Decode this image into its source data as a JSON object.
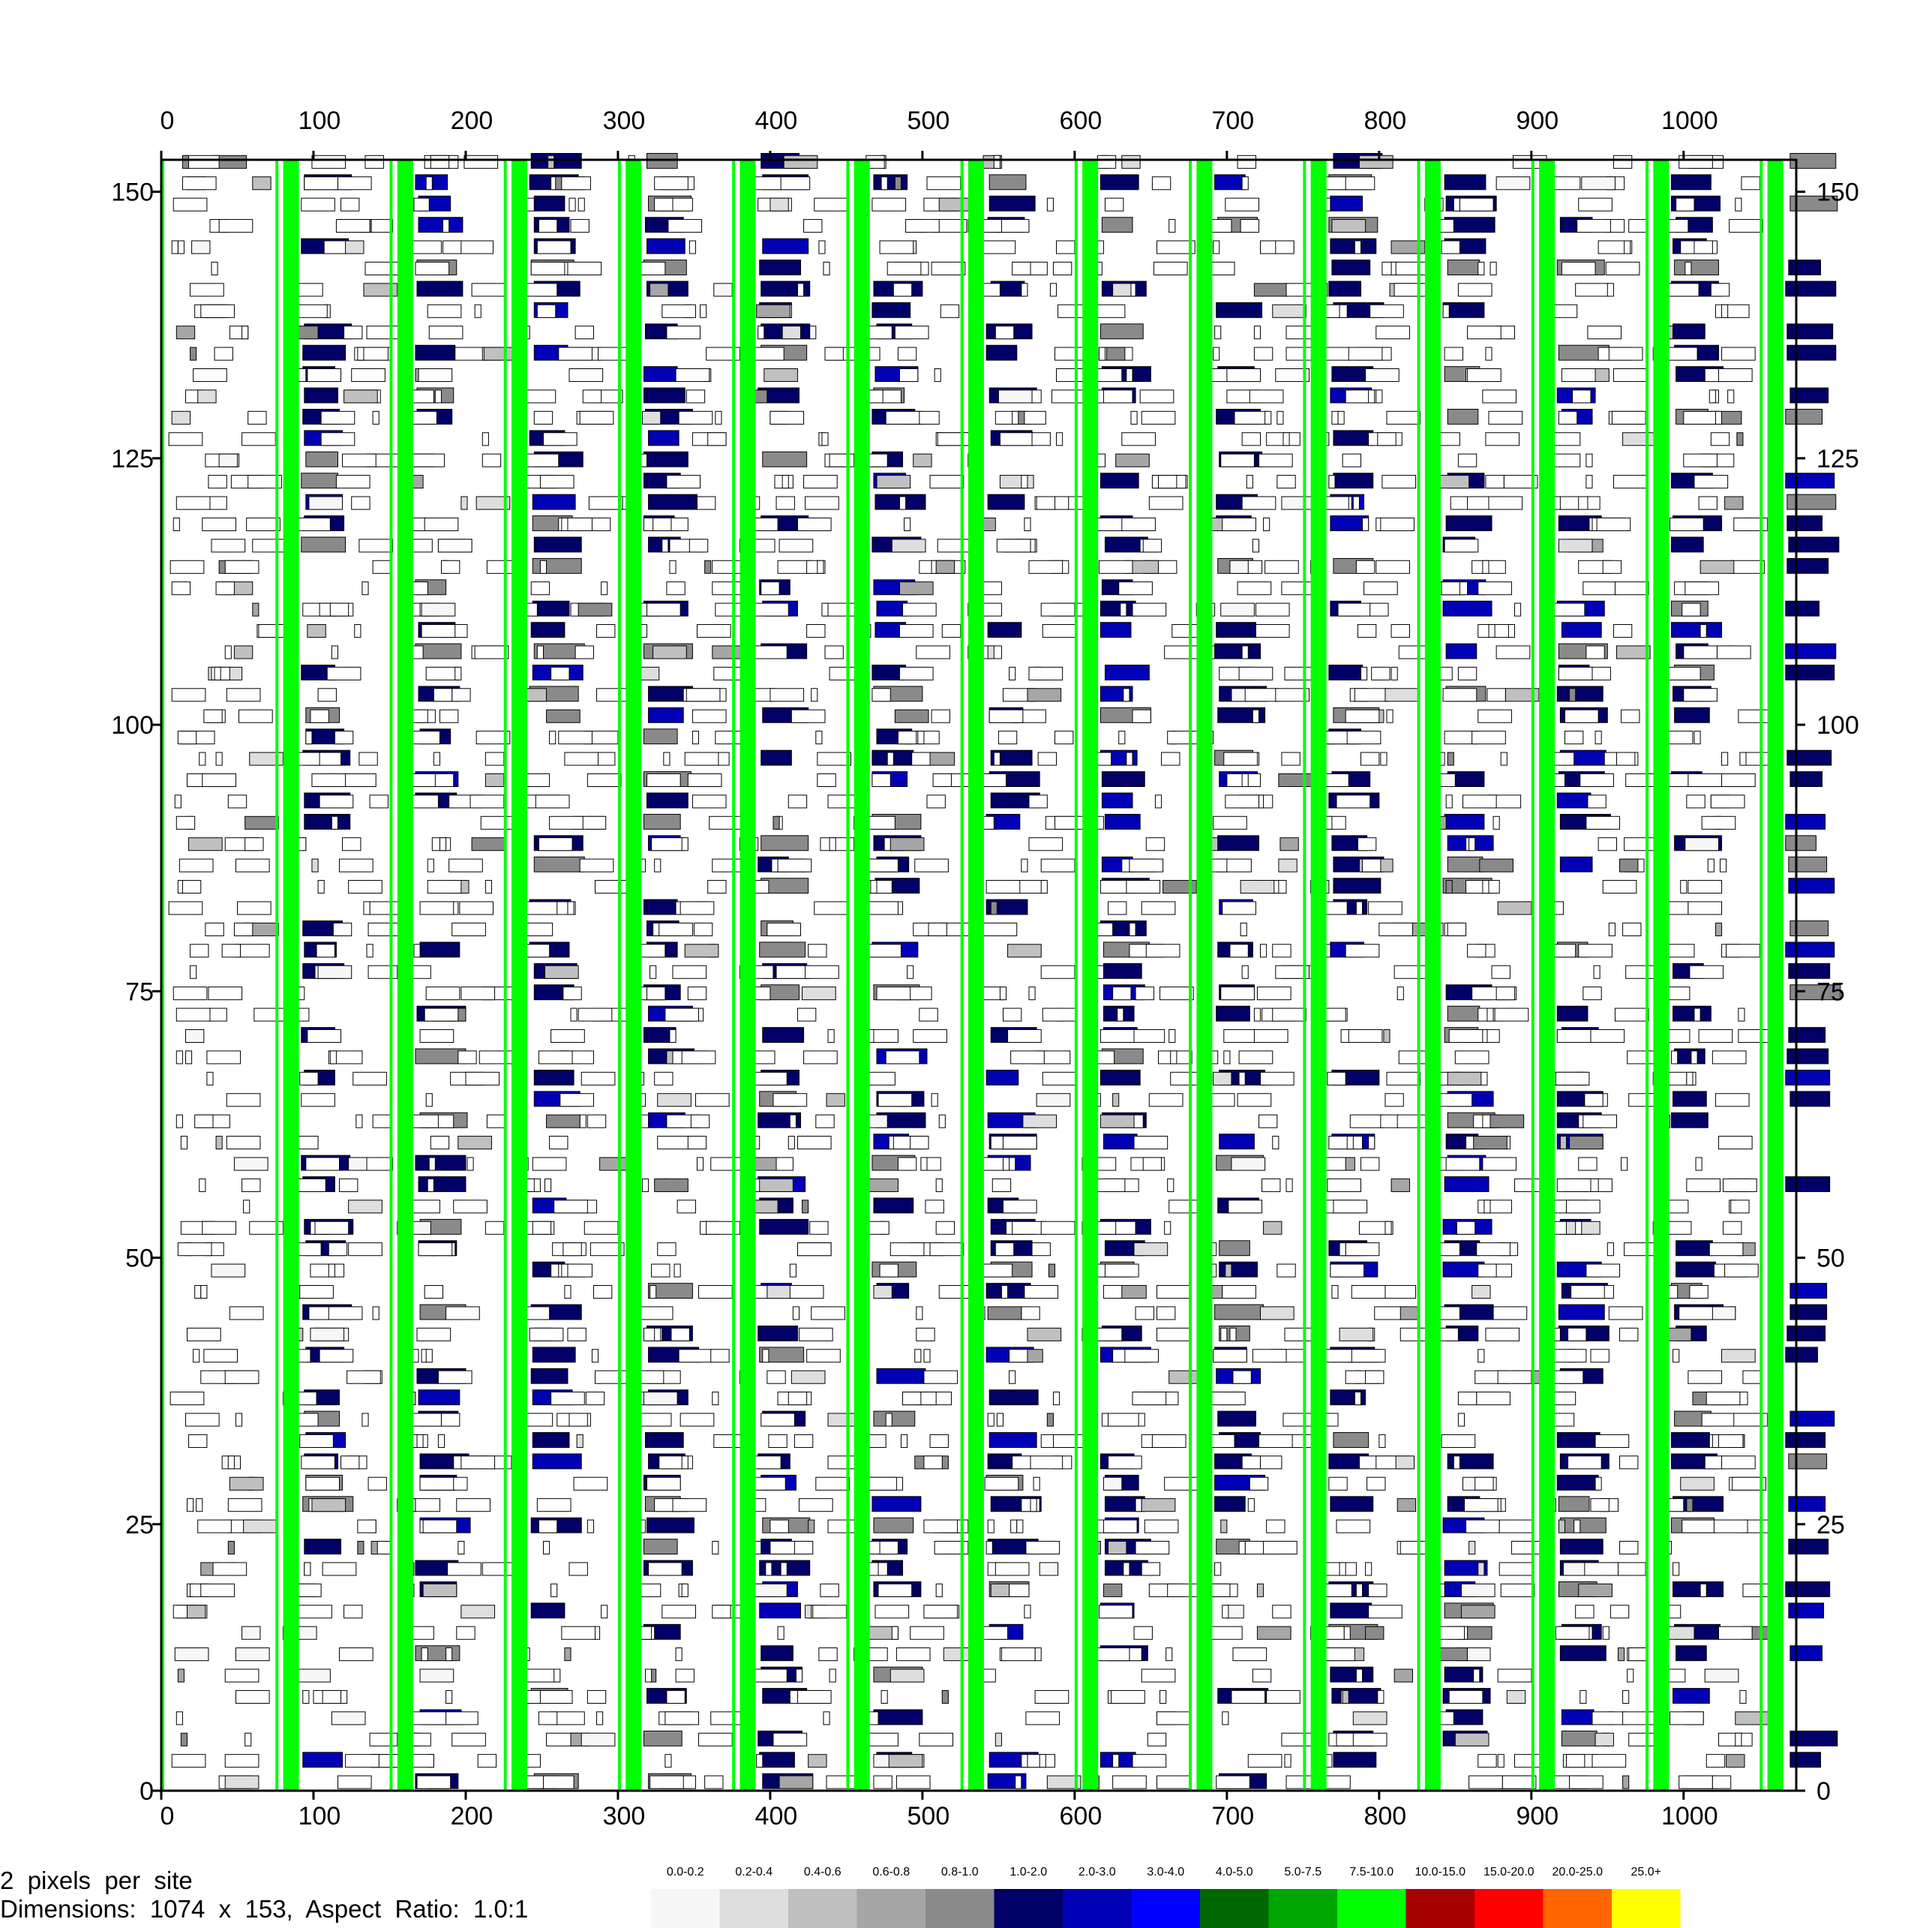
{
  "chart_data": {
    "type": "heatmap",
    "title": "",
    "xlabel": "",
    "ylabel": "",
    "xlim": [
      0,
      1074
    ],
    "ylim": [
      0,
      153
    ],
    "x_ticks": [
      0,
      100,
      200,
      300,
      400,
      500,
      600,
      700,
      800,
      900,
      1000
    ],
    "y_ticks": [
      0,
      25,
      50,
      75,
      100,
      125,
      150
    ],
    "grid": false,
    "legend_position": "bottom",
    "legend": [
      {
        "label": "0.0-0.2",
        "color": "#f7f7f7"
      },
      {
        "label": "0.2-0.4",
        "color": "#dedede"
      },
      {
        "label": "0.4-0.6",
        "color": "#c0c0c0"
      },
      {
        "label": "0.6-0.8",
        "color": "#a6a6a6"
      },
      {
        "label": "0.8-1.0",
        "color": "#8a8a8a"
      },
      {
        "label": "1.0-2.0",
        "color": "#000066"
      },
      {
        "label": "2.0-3.0",
        "color": "#0000b4"
      },
      {
        "label": "3.0-4.0",
        "color": "#0000ff"
      },
      {
        "label": "4.0-5.0",
        "color": "#006600"
      },
      {
        "label": "5.0-7.5",
        "color": "#00a600"
      },
      {
        "label": "7.5-10.0",
        "color": "#00ff00"
      },
      {
        "label": "10.0-15.0",
        "color": "#a60000"
      },
      {
        "label": "15.0-20.0",
        "color": "#ff0000"
      },
      {
        "label": "20.0-25.0",
        "color": "#ff6600"
      },
      {
        "label": "25.0+",
        "color": "#ffff00"
      }
    ],
    "green_bands_x": [
      85,
      160,
      235,
      310,
      385,
      460,
      535,
      610,
      685,
      760,
      835,
      910,
      985,
      1060
    ],
    "green_lines_x": [
      0,
      75,
      150,
      225,
      300,
      375,
      450,
      525,
      600,
      675,
      750,
      825,
      900,
      975,
      1050
    ],
    "green_band_color": "#00ff00"
  },
  "info": {
    "line1": "2  pixels  per  site",
    "line2": "Dimensions:  1074  x  153,  Aspect  Ratio:  1.0:1"
  }
}
